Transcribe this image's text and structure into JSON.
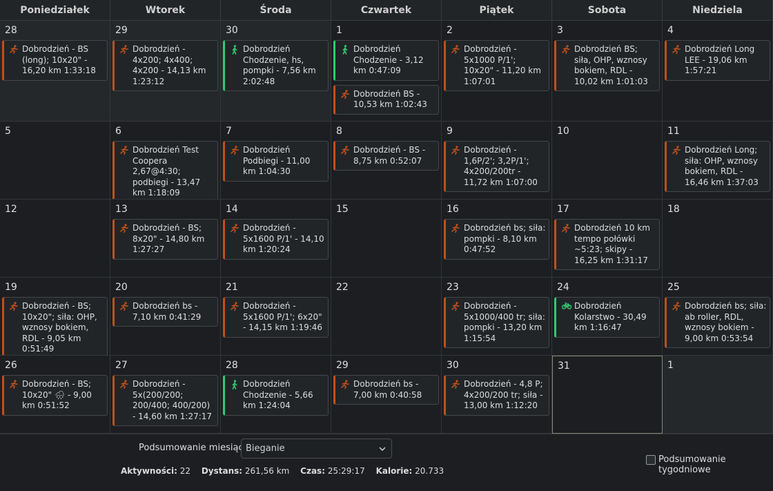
{
  "activity_types": {
    "run": {
      "color": "#c0501a"
    },
    "walk": {
      "color": "#2ecc71"
    },
    "bike": {
      "color": "#2ecc71"
    }
  },
  "weekdays": [
    "Poniedziałek",
    "Wtorek",
    "Środa",
    "Czwartek",
    "Piątek",
    "Sobota",
    "Niedziela"
  ],
  "weeks": [
    [
      {
        "date": "28",
        "other_month": true,
        "events": [
          {
            "type": "run",
            "text": "Dobrodzień - BS (long); 10x20\" - 16,20 km 1:33:18"
          }
        ]
      },
      {
        "date": "29",
        "other_month": true,
        "events": [
          {
            "type": "run",
            "text": "Dobrodzień - 4x200; 4x400; 4x200 - 14,13 km 1:23:12"
          }
        ]
      },
      {
        "date": "30",
        "other_month": true,
        "events": [
          {
            "type": "walk",
            "text": "Dobrodzień Chodzenie, hs, pompki - 7,56 km 2:02:48"
          }
        ]
      },
      {
        "date": "1",
        "events": [
          {
            "type": "walk",
            "text": "Dobrodzień Chodzenie - 3,12 km 0:47:09"
          },
          {
            "type": "run",
            "text": "Dobrodzień BS - 10,53 km 1:02:43"
          }
        ]
      },
      {
        "date": "2",
        "events": [
          {
            "type": "run",
            "text": "Dobrodzień - 5x1000 P/1'; 10x20\" - 11,20 km 1:07:01"
          }
        ]
      },
      {
        "date": "3",
        "events": [
          {
            "type": "run",
            "text": "Dobrodzień BS; siła, OHP, wznosy bokiem, RDL - 10,02 km 1:01:03"
          }
        ]
      },
      {
        "date": "4",
        "events": [
          {
            "type": "run",
            "text": "Dobrodzień Long LEE - 19,06 km 1:57:21"
          }
        ]
      }
    ],
    [
      {
        "date": "5",
        "events": []
      },
      {
        "date": "6",
        "events": [
          {
            "type": "run",
            "text": "Dobrodzień Test Coopera 2,67@4:30; podbiegi - 13,47 km 1:18:09"
          }
        ]
      },
      {
        "date": "7",
        "events": [
          {
            "type": "run",
            "text": "Dobrodzień Podbiegi - 11,00 km 1:04:30"
          }
        ]
      },
      {
        "date": "8",
        "events": [
          {
            "type": "run",
            "text": "Dobrodzień - BS - 8,75 km 0:52:07"
          }
        ]
      },
      {
        "date": "9",
        "events": [
          {
            "type": "run",
            "text": "Dobrodzień - 1,6P/2'; 3,2P/1'; 4x200/200tr - 11,72 km 1:07:00"
          }
        ]
      },
      {
        "date": "10",
        "events": []
      },
      {
        "date": "11",
        "events": [
          {
            "type": "run",
            "text": "Dobrodzień Long; siła: OHP, wznosy bokiem, RDL - 16,46 km 1:37:03"
          }
        ]
      }
    ],
    [
      {
        "date": "12",
        "events": []
      },
      {
        "date": "13",
        "events": [
          {
            "type": "run",
            "text": "Dobrodzień - BS; 8x20\" - 14,80 km 1:27:27"
          }
        ]
      },
      {
        "date": "14",
        "events": [
          {
            "type": "run",
            "text": "Dobrodzień - 5x1600 P/1' - 14,10 km 1:20:24"
          }
        ]
      },
      {
        "date": "15",
        "events": []
      },
      {
        "date": "16",
        "events": [
          {
            "type": "run",
            "text": "Dobrodzień bs; siła: pompki - 8,10 km 0:47:52"
          }
        ]
      },
      {
        "date": "17",
        "events": [
          {
            "type": "run",
            "text": "Dobrodzień 10 km tempo połówki ~5:23; skipy - 16,25 km 1:31:17"
          }
        ]
      },
      {
        "date": "18",
        "events": []
      }
    ],
    [
      {
        "date": "19",
        "events": [
          {
            "type": "run",
            "text": "Dobrodzień - BS; 10x20\"; siła: OHP, wznosy bokiem, RDL - 9,05 km 0:51:49"
          }
        ]
      },
      {
        "date": "20",
        "events": [
          {
            "type": "run",
            "text": "Dobrodzień bs - 7,10 km 0:41:29"
          }
        ]
      },
      {
        "date": "21",
        "events": [
          {
            "type": "run",
            "text": "Dobrodzień - 5x1600 P/1'; 6x20\" - 14,15 km 1:19:46"
          }
        ]
      },
      {
        "date": "22",
        "events": []
      },
      {
        "date": "23",
        "events": [
          {
            "type": "run",
            "text": "Dobrodzień - 5x1000/400 tr; siła: pompki - 13,20 km 1:15:54"
          }
        ]
      },
      {
        "date": "24",
        "events": [
          {
            "type": "bike",
            "text": "Dobrodzień Kolarstwo - 30,49 km 1:16:47"
          }
        ]
      },
      {
        "date": "25",
        "events": [
          {
            "type": "run",
            "text": "Dobrodzień bs; siła: ab roller, RDL, wznosy bokiem - 9,00 km 0:53:54"
          }
        ]
      }
    ],
    [
      {
        "date": "26",
        "events": [
          {
            "type": "run",
            "text": "Dobrodzień - BS; 10x20\" 🌧 - 9,00 km 0:51:52"
          }
        ]
      },
      {
        "date": "27",
        "events": [
          {
            "type": "run",
            "text": "Dobrodzień - 5x(200/200; 200/400; 400/200) - 14,60 km 1:27:17"
          }
        ]
      },
      {
        "date": "28",
        "events": [
          {
            "type": "walk",
            "text": "Dobrodzień Chodzenie - 5,66 km 1:24:04"
          }
        ]
      },
      {
        "date": "29",
        "events": [
          {
            "type": "run",
            "text": "Dobrodzień bs - 7,00 km 0:40:58"
          }
        ]
      },
      {
        "date": "30",
        "events": [
          {
            "type": "run",
            "text": "Dobrodzień - 4,8 P; 4x200/200 tr; siła - 13,00 km 1:12:20"
          }
        ]
      },
      {
        "date": "31",
        "today": true,
        "events": []
      },
      {
        "date": "1",
        "other_month": true,
        "events": []
      }
    ]
  ],
  "footer": {
    "summary_label": "Podsumowanie miesiąca",
    "select_value": "Bieganie",
    "stats": [
      {
        "label": "Aktywności:",
        "value": "22"
      },
      {
        "label": "Dystans:",
        "value": "261,56 km"
      },
      {
        "label": "Czas:",
        "value": "25:29:17"
      },
      {
        "label": "Kalorie:",
        "value": "20.733"
      }
    ],
    "weekly_summary_label": "Podsumowanie tygodniowe"
  }
}
